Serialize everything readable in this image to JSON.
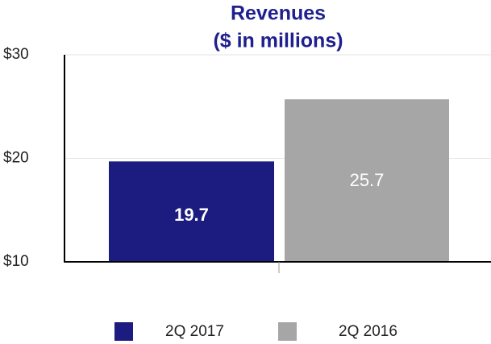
{
  "chart_data": {
    "type": "bar",
    "title": "Revenues",
    "subtitle": "($ in millions)",
    "categories": [
      "2Q 2017",
      "2Q 2016"
    ],
    "values": [
      19.7,
      25.7
    ],
    "colors": [
      "#1b1b80",
      "#a6a6a6"
    ],
    "ylim": [
      10,
      30
    ],
    "yticks": [
      {
        "value": 10,
        "label": "$10"
      },
      {
        "value": 20,
        "label": "$20"
      },
      {
        "value": 30,
        "label": "$30"
      }
    ],
    "grid": true,
    "legend": "bottom"
  }
}
